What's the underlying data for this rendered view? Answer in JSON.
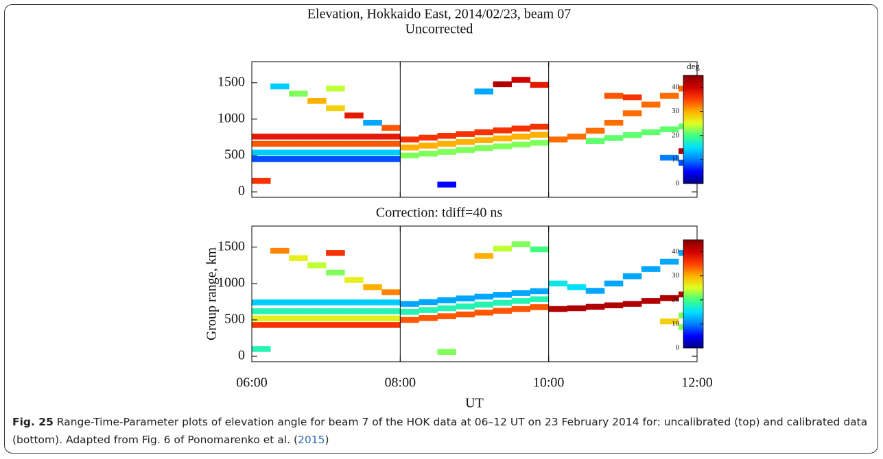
{
  "suptitle": "Elevation, Hokkaido East, 2014/02/23, beam 07",
  "chart_data": [
    {
      "type": "rti",
      "title": "Uncorrected",
      "xlim": [
        6,
        12
      ],
      "xticks": [
        {
          "value": 6,
          "label": "06:00"
        },
        {
          "value": 8,
          "label": "08:00"
        },
        {
          "value": 10,
          "label": "10:00"
        },
        {
          "value": 12,
          "label": "12:00"
        }
      ],
      "ylim": [
        -75,
        1790
      ],
      "yticks": [
        0,
        500,
        1000,
        1500
      ],
      "vlines": [
        8,
        10
      ],
      "colorbar": {
        "label": "deg",
        "clim": [
          0,
          45
        ],
        "ticks": [
          0,
          10,
          20,
          30,
          40
        ]
      },
      "colormap": [
        "#00007f",
        "#0000ff",
        "#0080ff",
        "#00e0ff",
        "#40ff80",
        "#e0ff20",
        "#ffb000",
        "#ff4000",
        "#d00000",
        "#800000"
      ],
      "points": [
        [
          6,
          450,
          8
        ],
        [
          6,
          540,
          14
        ],
        [
          6,
          660,
          34
        ],
        [
          6,
          760,
          38
        ],
        [
          6.25,
          450,
          8
        ],
        [
          6.25,
          540,
          14
        ],
        [
          6.25,
          660,
          34
        ],
        [
          6.25,
          760,
          38
        ],
        [
          6.5,
          450,
          8
        ],
        [
          6.5,
          540,
          14
        ],
        [
          6.5,
          660,
          34
        ],
        [
          6.5,
          760,
          38
        ],
        [
          6.75,
          450,
          8
        ],
        [
          6.75,
          540,
          14
        ],
        [
          6.75,
          660,
          34
        ],
        [
          6.75,
          760,
          38
        ],
        [
          7,
          450,
          8
        ],
        [
          7,
          540,
          14
        ],
        [
          7,
          660,
          34
        ],
        [
          7,
          760,
          38
        ],
        [
          7.25,
          450,
          8
        ],
        [
          7.25,
          540,
          14
        ],
        [
          7.25,
          660,
          34
        ],
        [
          7.25,
          760,
          38
        ],
        [
          7.5,
          450,
          8
        ],
        [
          7.5,
          540,
          14
        ],
        [
          7.5,
          660,
          34
        ],
        [
          7.5,
          760,
          38
        ],
        [
          7.75,
          450,
          8
        ],
        [
          7.75,
          540,
          14
        ],
        [
          7.75,
          660,
          34
        ],
        [
          7.75,
          760,
          38
        ],
        [
          8,
          500,
          22
        ],
        [
          8,
          610,
          30
        ],
        [
          8,
          720,
          36
        ],
        [
          8.25,
          525,
          22
        ],
        [
          8.25,
          635,
          30
        ],
        [
          8.25,
          745,
          36
        ],
        [
          8.5,
          550,
          22
        ],
        [
          8.5,
          660,
          30
        ],
        [
          8.5,
          770,
          36
        ],
        [
          8.75,
          575,
          22
        ],
        [
          8.75,
          685,
          30
        ],
        [
          8.75,
          795,
          36
        ],
        [
          9,
          600,
          22
        ],
        [
          9,
          710,
          30
        ],
        [
          9,
          820,
          36
        ],
        [
          9.25,
          625,
          22
        ],
        [
          9.25,
          735,
          30
        ],
        [
          9.25,
          845,
          36
        ],
        [
          9.5,
          650,
          22
        ],
        [
          9.5,
          760,
          30
        ],
        [
          9.5,
          870,
          36
        ],
        [
          9.75,
          675,
          22
        ],
        [
          9.75,
          785,
          30
        ],
        [
          9.75,
          895,
          36
        ],
        [
          10,
          720,
          33
        ],
        [
          10.25,
          760,
          33
        ],
        [
          10.5,
          840,
          33
        ],
        [
          10.75,
          950,
          33
        ],
        [
          11,
          1080,
          33
        ],
        [
          11.25,
          1200,
          33
        ],
        [
          11.5,
          1320,
          33
        ],
        [
          11.75,
          1420,
          33
        ],
        [
          10.5,
          700,
          21
        ],
        [
          10.75,
          740,
          21
        ],
        [
          11,
          780,
          21
        ],
        [
          11.25,
          820,
          21
        ],
        [
          11.5,
          860,
          21
        ],
        [
          11.75,
          900,
          21
        ],
        [
          6.25,
          1450,
          14
        ],
        [
          6.5,
          1350,
          22
        ],
        [
          6.75,
          1250,
          30
        ],
        [
          7,
          1150,
          28
        ],
        [
          7.25,
          1050,
          38
        ],
        [
          7.5,
          950,
          12
        ],
        [
          7.75,
          880,
          34
        ],
        [
          9.25,
          1480,
          42
        ],
        [
          9.5,
          1540,
          40
        ],
        [
          9.75,
          1470,
          38
        ],
        [
          9,
          1380,
          12
        ],
        [
          10.75,
          1320,
          34
        ],
        [
          11,
          1300,
          36
        ],
        [
          11.75,
          560,
          42
        ],
        [
          11.75,
          400,
          8
        ],
        [
          11.5,
          470,
          10
        ],
        [
          8.5,
          100,
          5
        ],
        [
          6,
          150,
          36
        ],
        [
          7,
          1420,
          24
        ]
      ]
    },
    {
      "type": "rti",
      "title": "Correction: tdiff=40 ns",
      "ylabel": "Group range, km",
      "xlabel": "UT",
      "xlim": [
        6,
        12
      ],
      "xticks": [
        {
          "value": 6,
          "label": "06:00"
        },
        {
          "value": 8,
          "label": "08:00"
        },
        {
          "value": 10,
          "label": "10:00"
        },
        {
          "value": 12,
          "label": "12:00"
        }
      ],
      "ylim": [
        -75,
        1790
      ],
      "yticks": [
        0,
        500,
        1000,
        1500
      ],
      "vlines": [
        8,
        10
      ],
      "colorbar": {
        "clim": [
          0,
          45
        ],
        "ticks": [
          0,
          10,
          20,
          30,
          40
        ]
      },
      "colormap": [
        "#00007f",
        "#0000ff",
        "#0080ff",
        "#00e0ff",
        "#40ff80",
        "#e0ff20",
        "#ffb000",
        "#ff4000",
        "#d00000",
        "#800000"
      ],
      "points": [
        [
          6,
          430,
          36
        ],
        [
          6,
          520,
          26
        ],
        [
          6,
          620,
          18
        ],
        [
          6,
          740,
          14
        ],
        [
          6.25,
          430,
          36
        ],
        [
          6.25,
          520,
          26
        ],
        [
          6.25,
          620,
          18
        ],
        [
          6.25,
          740,
          14
        ],
        [
          6.5,
          430,
          36
        ],
        [
          6.5,
          520,
          26
        ],
        [
          6.5,
          620,
          18
        ],
        [
          6.5,
          740,
          14
        ],
        [
          6.75,
          430,
          36
        ],
        [
          6.75,
          520,
          26
        ],
        [
          6.75,
          620,
          18
        ],
        [
          6.75,
          740,
          14
        ],
        [
          7,
          430,
          36
        ],
        [
          7,
          520,
          26
        ],
        [
          7,
          620,
          18
        ],
        [
          7,
          740,
          14
        ],
        [
          7.25,
          430,
          36
        ],
        [
          7.25,
          520,
          26
        ],
        [
          7.25,
          620,
          18
        ],
        [
          7.25,
          740,
          14
        ],
        [
          7.5,
          430,
          36
        ],
        [
          7.5,
          520,
          26
        ],
        [
          7.5,
          620,
          18
        ],
        [
          7.5,
          740,
          14
        ],
        [
          7.75,
          430,
          36
        ],
        [
          7.75,
          520,
          26
        ],
        [
          7.75,
          620,
          18
        ],
        [
          7.75,
          740,
          14
        ],
        [
          8,
          500,
          34
        ],
        [
          8,
          610,
          18
        ],
        [
          8,
          720,
          12
        ],
        [
          8.25,
          525,
          34
        ],
        [
          8.25,
          635,
          18
        ],
        [
          8.25,
          745,
          12
        ],
        [
          8.5,
          550,
          34
        ],
        [
          8.5,
          660,
          18
        ],
        [
          8.5,
          770,
          12
        ],
        [
          8.75,
          575,
          34
        ],
        [
          8.75,
          685,
          18
        ],
        [
          8.75,
          795,
          12
        ],
        [
          9,
          600,
          34
        ],
        [
          9,
          710,
          18
        ],
        [
          9,
          820,
          12
        ],
        [
          9.25,
          625,
          34
        ],
        [
          9.25,
          735,
          18
        ],
        [
          9.25,
          845,
          12
        ],
        [
          9.5,
          650,
          34
        ],
        [
          9.5,
          760,
          18
        ],
        [
          9.5,
          870,
          12
        ],
        [
          9.75,
          675,
          34
        ],
        [
          9.75,
          785,
          18
        ],
        [
          9.75,
          895,
          12
        ],
        [
          10,
          650,
          42
        ],
        [
          10.25,
          660,
          42
        ],
        [
          10.5,
          680,
          42
        ],
        [
          10.75,
          700,
          42
        ],
        [
          11,
          720,
          42
        ],
        [
          11.25,
          760,
          42
        ],
        [
          11.5,
          800,
          42
        ],
        [
          11.75,
          850,
          42
        ],
        [
          10.5,
          900,
          12
        ],
        [
          10.75,
          1000,
          12
        ],
        [
          11,
          1100,
          12
        ],
        [
          11.25,
          1200,
          12
        ],
        [
          11.5,
          1300,
          12
        ],
        [
          11.75,
          1420,
          12
        ],
        [
          10,
          1000,
          16
        ],
        [
          10.25,
          950,
          15
        ],
        [
          6.25,
          1450,
          32
        ],
        [
          6.5,
          1350,
          26
        ],
        [
          6.75,
          1250,
          24
        ],
        [
          7,
          1150,
          22
        ],
        [
          7.25,
          1050,
          26
        ],
        [
          7.5,
          950,
          30
        ],
        [
          7.75,
          880,
          32
        ],
        [
          9.25,
          1480,
          24
        ],
        [
          9.5,
          1540,
          22
        ],
        [
          9.75,
          1470,
          20
        ],
        [
          9,
          1380,
          30
        ],
        [
          11.75,
          560,
          22
        ],
        [
          11.75,
          400,
          22
        ],
        [
          11.5,
          480,
          28
        ],
        [
          8.5,
          60,
          22
        ],
        [
          6,
          100,
          18
        ],
        [
          7,
          1420,
          36
        ]
      ]
    }
  ],
  "caption": {
    "label": "Fig. 25",
    "text": "Range-Time-Parameter plots of elevation angle for beam 7 of the HOK data at 06–12 UT on 23 February 2014 for: uncalibrated (top) and calibrated data (bottom). Adapted from Fig. 6 of Ponomarenko et al. (",
    "link": "2015",
    "end": ")"
  }
}
